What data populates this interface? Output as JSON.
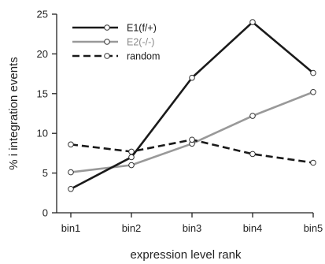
{
  "chart_data": {
    "type": "line",
    "categories": [
      "bin1",
      "bin2",
      "bin3",
      "bin4",
      "bin5"
    ],
    "series": [
      {
        "name": "E1(f/+)",
        "values": [
          3.0,
          7.0,
          17.0,
          24.0,
          17.6
        ],
        "color": "#1a1a1a",
        "dash": "solid",
        "label_color": "#1a1a1a"
      },
      {
        "name": "E2(-/-)",
        "values": [
          5.1,
          6.0,
          8.7,
          12.2,
          15.2
        ],
        "color": "#999999",
        "dash": "solid",
        "label_color": "#8a8a8a"
      },
      {
        "name": "random",
        "values": [
          8.6,
          7.7,
          9.2,
          7.4,
          6.3
        ],
        "color": "#1a1a1a",
        "dash": "dashed",
        "label_color": "#1a1a1a"
      }
    ],
    "xlabel": "expression level rank",
    "ylabel": "% i integration events",
    "ylim": [
      0,
      25
    ],
    "yticks": [
      0,
      5,
      10,
      15,
      20,
      25
    ],
    "grid": false,
    "legend_position": "top-left"
  }
}
